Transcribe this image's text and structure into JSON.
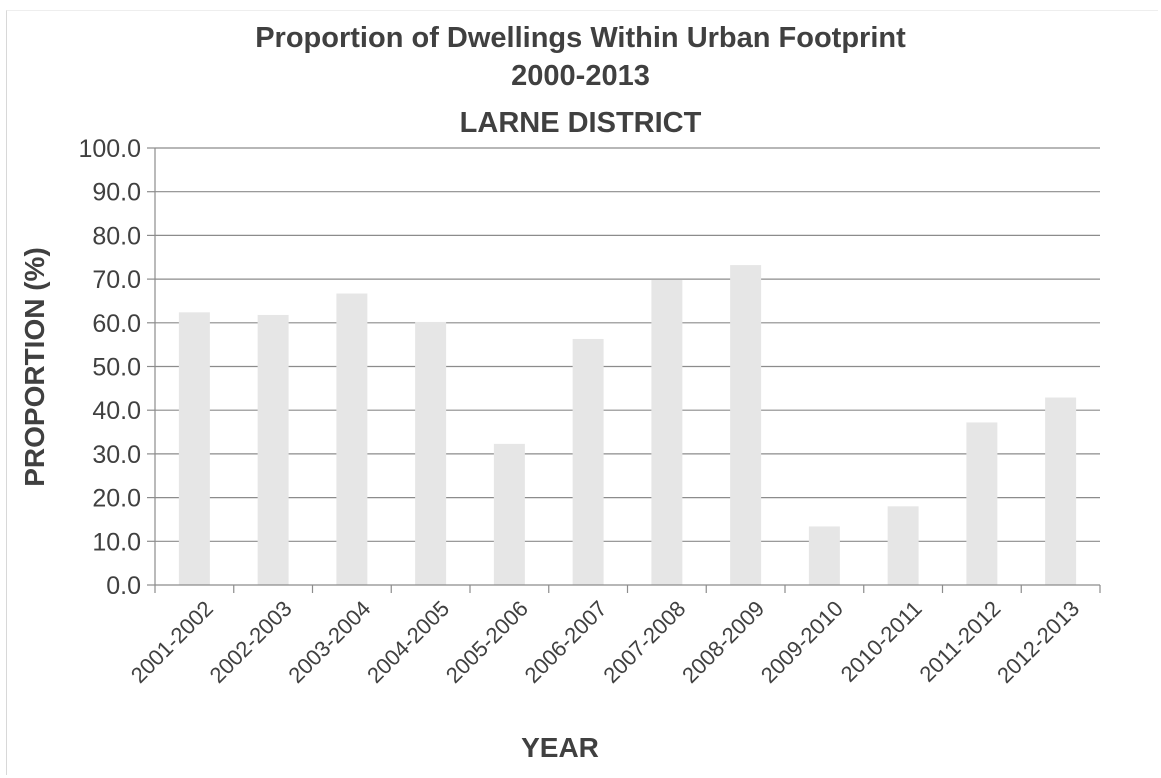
{
  "chart_data": {
    "type": "bar",
    "title": [
      "Proportion of Dwellings Within Urban Footprint",
      "2000-2013",
      "LARNE DISTRICT"
    ],
    "xlabel": "YEAR",
    "ylabel": "PROPORTION (%)",
    "categories": [
      "2001-2002",
      "2002-2003",
      "2003-2004",
      "2004-2005",
      "2005-2006",
      "2006-2007",
      "2007-2008",
      "2008-2009",
      "2009-2010",
      "2010-2011",
      "2011-2012",
      "2012-2013"
    ],
    "values": [
      62.4,
      61.8,
      66.7,
      60.2,
      32.3,
      56.3,
      69.8,
      73.2,
      13.4,
      18.0,
      37.2,
      42.9
    ],
    "ylim": [
      0,
      100
    ],
    "yticks": [
      "0.0",
      "10.0",
      "20.0",
      "30.0",
      "40.0",
      "50.0",
      "60.0",
      "70.0",
      "80.0",
      "90.0",
      "100.0"
    ],
    "grid": true,
    "legend": "none",
    "bar_color": "#e6e6e6",
    "grid_color": "#8c8c8c",
    "text_color": "#404040"
  }
}
